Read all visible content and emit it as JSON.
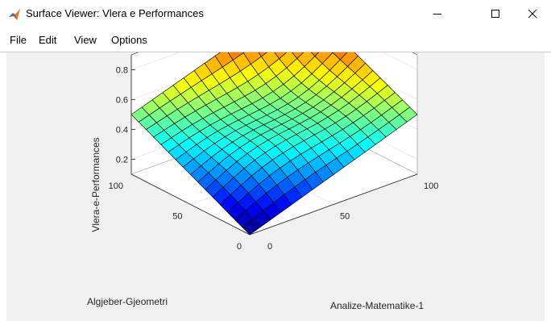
{
  "window": {
    "title": "Surface Viewer: Vlera e Performances",
    "icon": "matlab-icon",
    "controls": {
      "minimize": "minimize-icon",
      "maximize": "maximize-icon",
      "close": "close-icon"
    }
  },
  "menu": {
    "items": [
      {
        "label": "File"
      },
      {
        "label": "Edit"
      },
      {
        "label": "View"
      },
      {
        "label": "Options"
      }
    ]
  },
  "chart_data": {
    "type": "surface",
    "title": "",
    "xlabel": "Algjeber-Gjeometri",
    "ylabel": "Analize-Matematike-1",
    "zlabel": "Vlera-e-Performances",
    "xlim": [
      0,
      100
    ],
    "ylim": [
      0,
      100
    ],
    "zlim": [
      0.1,
      0.9
    ],
    "x_ticks": [
      0,
      50,
      100
    ],
    "y_ticks": [
      0,
      50,
      100
    ],
    "z_ticks": [
      0.2,
      0.4,
      0.6,
      0.8
    ],
    "x_tick_labels": [
      "0",
      "50",
      "100"
    ],
    "y_tick_labels": [
      "0",
      "50",
      "100"
    ],
    "z_tick_labels": [
      "0.2",
      "0.4",
      "0.6",
      "0.8"
    ],
    "colormap": "jet",
    "grid": true,
    "grid_x": [
      0,
      6.25,
      12.5,
      18.75,
      25,
      31.25,
      37.5,
      43.75,
      50,
      56.25,
      62.5,
      68.75,
      75,
      81.25,
      87.5,
      93.75,
      100
    ],
    "grid_y": [
      0,
      6.25,
      12.5,
      18.75,
      25,
      31.25,
      37.5,
      43.75,
      50,
      56.25,
      62.5,
      68.75,
      75,
      81.25,
      87.5,
      93.75,
      100
    ],
    "corner_values": {
      "x0_y0": 0.1,
      "x100_y0": 0.5,
      "x0_y100": 0.5,
      "x100_y100": 0.88
    }
  }
}
